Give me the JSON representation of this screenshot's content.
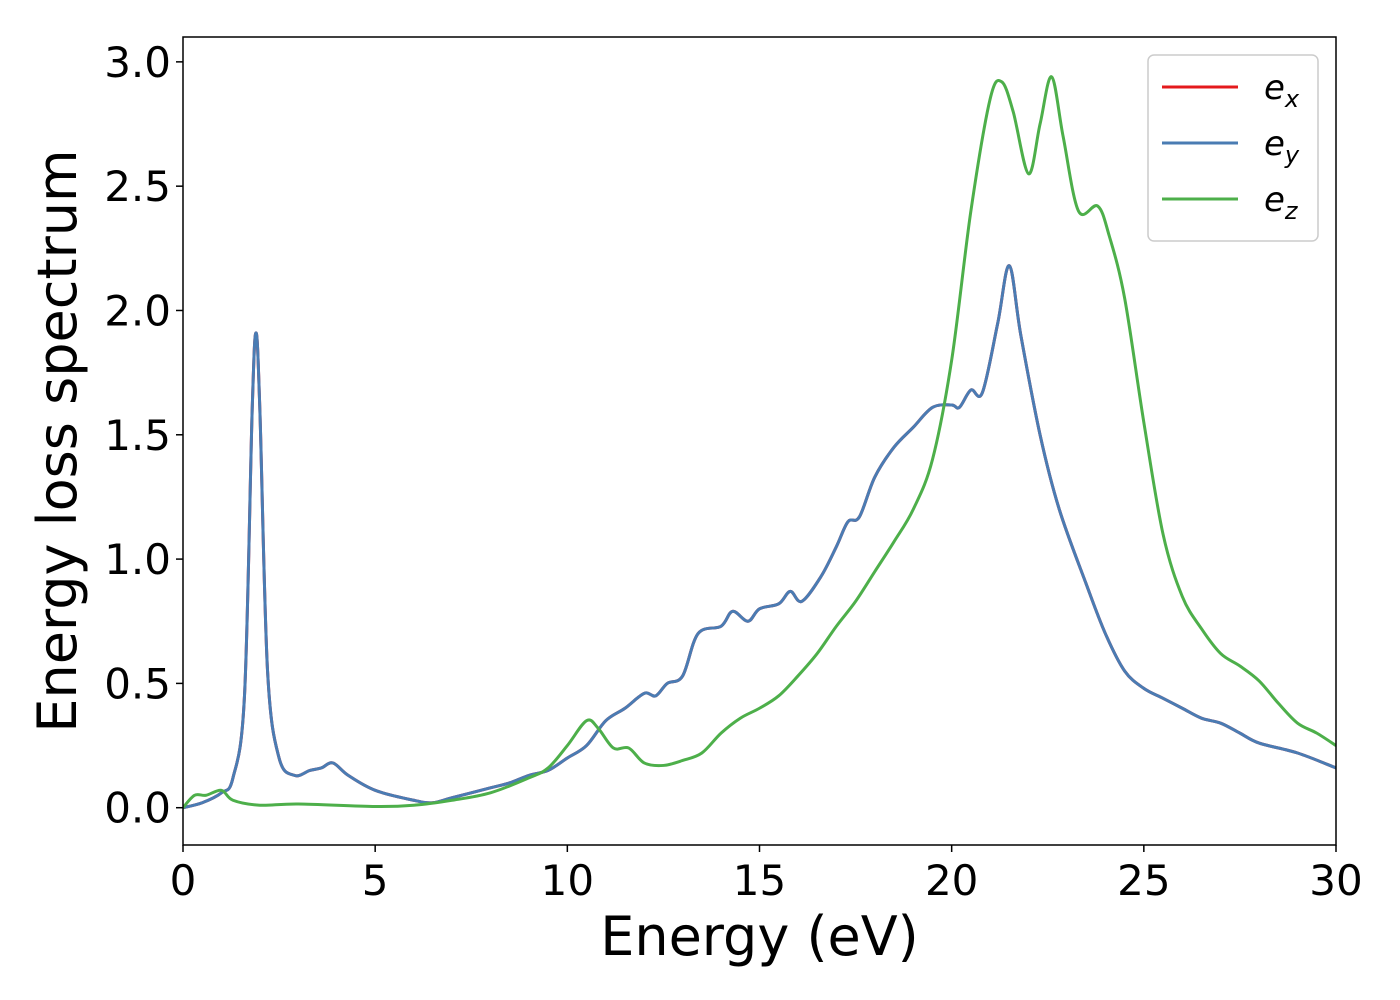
{
  "chart_data": {
    "type": "line",
    "title": "",
    "xlabel": "Energy (eV)",
    "ylabel": "Energy loss spectrum",
    "xlim": [
      0,
      30
    ],
    "ylim": [
      -0.15,
      3.1
    ],
    "xticks": [
      0,
      5,
      10,
      15,
      20,
      25,
      30
    ],
    "xtick_labels": [
      "0",
      "5",
      "10",
      "15",
      "20",
      "25",
      "30"
    ],
    "yticks": [
      0.0,
      0.5,
      1.0,
      1.5,
      2.0,
      2.5,
      3.0
    ],
    "ytick_labels": [
      "0.0",
      "0.5",
      "1.0",
      "1.5",
      "2.0",
      "2.5",
      "3.0"
    ],
    "grid": false,
    "legend_position": "top-right",
    "series": [
      {
        "name": "e_x",
        "legend_base": "e",
        "legend_sub": "x",
        "color": "#e41a1c",
        "points": [
          [
            0,
            0
          ],
          [
            0.5,
            0.02
          ],
          [
            1.0,
            0.06
          ],
          [
            1.3,
            0.12
          ],
          [
            1.6,
            0.45
          ],
          [
            1.8,
            1.6
          ],
          [
            1.9,
            1.91
          ],
          [
            2.0,
            1.6
          ],
          [
            2.2,
            0.55
          ],
          [
            2.5,
            0.2
          ],
          [
            2.9,
            0.13
          ],
          [
            3.3,
            0.15
          ],
          [
            3.6,
            0.16
          ],
          [
            3.9,
            0.18
          ],
          [
            4.3,
            0.13
          ],
          [
            5.0,
            0.07
          ],
          [
            6.0,
            0.03
          ],
          [
            6.5,
            0.02
          ],
          [
            7.0,
            0.04
          ],
          [
            8.0,
            0.08
          ],
          [
            8.5,
            0.1
          ],
          [
            9.0,
            0.13
          ],
          [
            9.5,
            0.15
          ],
          [
            10.0,
            0.2
          ],
          [
            10.5,
            0.25
          ],
          [
            11.0,
            0.35
          ],
          [
            11.5,
            0.4
          ],
          [
            12.0,
            0.46
          ],
          [
            12.3,
            0.45
          ],
          [
            12.6,
            0.5
          ],
          [
            13.0,
            0.53
          ],
          [
            13.4,
            0.7
          ],
          [
            14.0,
            0.73
          ],
          [
            14.3,
            0.79
          ],
          [
            14.7,
            0.75
          ],
          [
            15.0,
            0.8
          ],
          [
            15.5,
            0.82
          ],
          [
            15.8,
            0.87
          ],
          [
            16.1,
            0.83
          ],
          [
            16.6,
            0.93
          ],
          [
            17.0,
            1.05
          ],
          [
            17.3,
            1.15
          ],
          [
            17.6,
            1.17
          ],
          [
            18.0,
            1.33
          ],
          [
            18.5,
            1.45
          ],
          [
            19.0,
            1.53
          ],
          [
            19.5,
            1.61
          ],
          [
            20.0,
            1.62
          ],
          [
            20.2,
            1.61
          ],
          [
            20.5,
            1.68
          ],
          [
            20.8,
            1.67
          ],
          [
            21.2,
            1.95
          ],
          [
            21.5,
            2.18
          ],
          [
            21.8,
            1.9
          ],
          [
            22.3,
            1.5
          ],
          [
            22.8,
            1.2
          ],
          [
            23.5,
            0.9
          ],
          [
            24.0,
            0.7
          ],
          [
            24.5,
            0.55
          ],
          [
            25.0,
            0.48
          ],
          [
            25.5,
            0.44
          ],
          [
            26.0,
            0.4
          ],
          [
            26.5,
            0.36
          ],
          [
            27.0,
            0.34
          ],
          [
            27.5,
            0.3
          ],
          [
            28.0,
            0.26
          ],
          [
            29.0,
            0.22
          ],
          [
            30.0,
            0.16
          ]
        ]
      },
      {
        "name": "e_y",
        "legend_base": "e",
        "legend_sub": "y",
        "color": "#4a7cb3",
        "points": [
          [
            0,
            0
          ],
          [
            0.5,
            0.02
          ],
          [
            1.0,
            0.06
          ],
          [
            1.3,
            0.12
          ],
          [
            1.6,
            0.45
          ],
          [
            1.8,
            1.6
          ],
          [
            1.9,
            1.91
          ],
          [
            2.0,
            1.6
          ],
          [
            2.2,
            0.55
          ],
          [
            2.5,
            0.2
          ],
          [
            2.9,
            0.13
          ],
          [
            3.3,
            0.15
          ],
          [
            3.6,
            0.16
          ],
          [
            3.9,
            0.18
          ],
          [
            4.3,
            0.13
          ],
          [
            5.0,
            0.07
          ],
          [
            6.0,
            0.03
          ],
          [
            6.5,
            0.02
          ],
          [
            7.0,
            0.04
          ],
          [
            8.0,
            0.08
          ],
          [
            8.5,
            0.1
          ],
          [
            9.0,
            0.13
          ],
          [
            9.5,
            0.15
          ],
          [
            10.0,
            0.2
          ],
          [
            10.5,
            0.25
          ],
          [
            11.0,
            0.35
          ],
          [
            11.5,
            0.4
          ],
          [
            12.0,
            0.46
          ],
          [
            12.3,
            0.45
          ],
          [
            12.6,
            0.5
          ],
          [
            13.0,
            0.53
          ],
          [
            13.4,
            0.7
          ],
          [
            14.0,
            0.73
          ],
          [
            14.3,
            0.79
          ],
          [
            14.7,
            0.75
          ],
          [
            15.0,
            0.8
          ],
          [
            15.5,
            0.82
          ],
          [
            15.8,
            0.87
          ],
          [
            16.1,
            0.83
          ],
          [
            16.6,
            0.93
          ],
          [
            17.0,
            1.05
          ],
          [
            17.3,
            1.15
          ],
          [
            17.6,
            1.17
          ],
          [
            18.0,
            1.33
          ],
          [
            18.5,
            1.45
          ],
          [
            19.0,
            1.53
          ],
          [
            19.5,
            1.61
          ],
          [
            20.0,
            1.62
          ],
          [
            20.2,
            1.61
          ],
          [
            20.5,
            1.68
          ],
          [
            20.8,
            1.67
          ],
          [
            21.2,
            1.95
          ],
          [
            21.5,
            2.18
          ],
          [
            21.8,
            1.9
          ],
          [
            22.3,
            1.5
          ],
          [
            22.8,
            1.2
          ],
          [
            23.5,
            0.9
          ],
          [
            24.0,
            0.7
          ],
          [
            24.5,
            0.55
          ],
          [
            25.0,
            0.48
          ],
          [
            25.5,
            0.44
          ],
          [
            26.0,
            0.4
          ],
          [
            26.5,
            0.36
          ],
          [
            27.0,
            0.34
          ],
          [
            27.5,
            0.3
          ],
          [
            28.0,
            0.26
          ],
          [
            29.0,
            0.22
          ],
          [
            30.0,
            0.16
          ]
        ]
      },
      {
        "name": "e_z",
        "legend_base": "e",
        "legend_sub": "z",
        "color": "#4daf4a",
        "points": [
          [
            0,
            0
          ],
          [
            0.3,
            0.05
          ],
          [
            0.6,
            0.05
          ],
          [
            1.0,
            0.07
          ],
          [
            1.3,
            0.03
          ],
          [
            2.0,
            0.01
          ],
          [
            3.0,
            0.015
          ],
          [
            5.0,
            0.005
          ],
          [
            6.0,
            0.01
          ],
          [
            7.0,
            0.03
          ],
          [
            8.0,
            0.06
          ],
          [
            9.0,
            0.12
          ],
          [
            9.5,
            0.16
          ],
          [
            10.0,
            0.25
          ],
          [
            10.5,
            0.35
          ],
          [
            10.8,
            0.32
          ],
          [
            11.2,
            0.24
          ],
          [
            11.6,
            0.24
          ],
          [
            12.0,
            0.18
          ],
          [
            12.5,
            0.17
          ],
          [
            13.0,
            0.19
          ],
          [
            13.5,
            0.22
          ],
          [
            14.0,
            0.3
          ],
          [
            14.5,
            0.36
          ],
          [
            15.0,
            0.4
          ],
          [
            15.5,
            0.45
          ],
          [
            16.0,
            0.53
          ],
          [
            16.5,
            0.62
          ],
          [
            17.0,
            0.73
          ],
          [
            17.5,
            0.83
          ],
          [
            18.0,
            0.95
          ],
          [
            18.5,
            1.07
          ],
          [
            19.0,
            1.2
          ],
          [
            19.5,
            1.4
          ],
          [
            20.0,
            1.8
          ],
          [
            20.5,
            2.4
          ],
          [
            21.0,
            2.85
          ],
          [
            21.3,
            2.92
          ],
          [
            21.6,
            2.8
          ],
          [
            22.0,
            2.55
          ],
          [
            22.3,
            2.75
          ],
          [
            22.6,
            2.94
          ],
          [
            22.9,
            2.7
          ],
          [
            23.3,
            2.4
          ],
          [
            23.8,
            2.42
          ],
          [
            24.1,
            2.3
          ],
          [
            24.5,
            2.05
          ],
          [
            25.0,
            1.55
          ],
          [
            25.5,
            1.1
          ],
          [
            26.0,
            0.85
          ],
          [
            26.5,
            0.72
          ],
          [
            27.0,
            0.62
          ],
          [
            27.5,
            0.57
          ],
          [
            28.0,
            0.51
          ],
          [
            28.5,
            0.42
          ],
          [
            29.0,
            0.34
          ],
          [
            29.5,
            0.3
          ],
          [
            30.0,
            0.25
          ]
        ]
      }
    ]
  }
}
